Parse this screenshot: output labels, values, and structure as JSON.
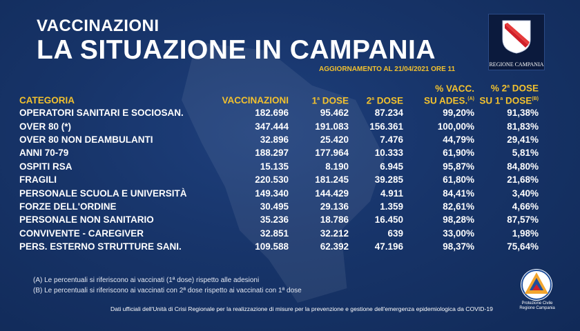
{
  "header": {
    "subtitle": "VACCINAZIONI",
    "title": "LA SITUAZIONE IN CAMPANIA",
    "update": "AGGIORNAMENTO AL 21/04/2021 ORE 11"
  },
  "logo": {
    "label": "REGIONE CAMPANIA"
  },
  "colors": {
    "background": "#173469",
    "accent": "#f2c12e",
    "text": "#ffffff"
  },
  "table": {
    "headers": {
      "category": "CATEGORIA",
      "vaccinations": "VACCINAZIONI",
      "dose1": "1",
      "dose1_sup": "a",
      "dose1_suffix": " DOSE",
      "dose2": "2",
      "dose2_sup": "a",
      "dose2_suffix": " DOSE",
      "pct_vacc_line1": "% VACC.",
      "pct_vacc_line2": "SU ADES.",
      "pct_vacc_note": "(A)",
      "pct_dose2_line1": "% 2",
      "pct_dose2_line1_sup": "a",
      "pct_dose2_line1_suffix": " DOSE",
      "pct_dose2_line2": "SU 1",
      "pct_dose2_line2_sup": "a",
      "pct_dose2_line2_suffix": " DOSE",
      "pct_dose2_note": "(B)"
    },
    "rows": [
      {
        "category": "OPERATORI SANITARI E SOCIOSAN.",
        "vaccinations": "182.696",
        "dose1": "95.462",
        "dose2": "87.234",
        "pct_vacc": "99,20%",
        "pct_dose2": "91,38%"
      },
      {
        "category": "OVER 80 (*)",
        "vaccinations": "347.444",
        "dose1": "191.083",
        "dose2": "156.361",
        "pct_vacc": "100,00%",
        "pct_dose2": "81,83%"
      },
      {
        "category": "OVER 80 NON DEAMBULANTI",
        "vaccinations": "32.896",
        "dose1": "25.420",
        "dose2": "7.476",
        "pct_vacc": "44,79%",
        "pct_dose2": "29,41%"
      },
      {
        "category": "ANNI 70-79",
        "vaccinations": "188.297",
        "dose1": "177.964",
        "dose2": "10.333",
        "pct_vacc": "61,90%",
        "pct_dose2": "5,81%"
      },
      {
        "category": "OSPITI RSA",
        "vaccinations": "15.135",
        "dose1": "8.190",
        "dose2": "6.945",
        "pct_vacc": "95,87%",
        "pct_dose2": "84,80%"
      },
      {
        "category": "FRAGILI",
        "vaccinations": "220.530",
        "dose1": "181.245",
        "dose2": "39.285",
        "pct_vacc": "61,80%",
        "pct_dose2": "21,68%"
      },
      {
        "category": "PERSONALE SCUOLA E UNIVERSITÀ",
        "vaccinations": "149.340",
        "dose1": "144.429",
        "dose2": "4.911",
        "pct_vacc": "84,41%",
        "pct_dose2": "3,40%"
      },
      {
        "category": "FORZE DELL'ORDINE",
        "vaccinations": "30.495",
        "dose1": "29.136",
        "dose2": "1.359",
        "pct_vacc": "82,61%",
        "pct_dose2": "4,66%"
      },
      {
        "category": "PERSONALE NON SANITARIO",
        "vaccinations": "35.236",
        "dose1": "18.786",
        "dose2": "16.450",
        "pct_vacc": "98,28%",
        "pct_dose2": "87,57%"
      },
      {
        "category": "CONVIVENTE - CAREGIVER",
        "vaccinations": "32.851",
        "dose1": "32.212",
        "dose2": "639",
        "pct_vacc": "33,00%",
        "pct_dose2": "1,98%"
      },
      {
        "category": "PERS. ESTERNO STRUTTURE SANI.",
        "vaccinations": "109.588",
        "dose1": "62.392",
        "dose2": "47.196",
        "pct_vacc": "98,37%",
        "pct_dose2": "75,64%"
      }
    ]
  },
  "footnotes": {
    "note_a": "(A) Le percentuali si riferiscono ai vaccinati (1ª dose) rispetto alle adesioni",
    "note_b": "(B) Le percentuali si riferiscono ai vaccinati con 2ª dose rispetto ai vaccinati con 1ª dose",
    "source": "Dati ufficiali dell'Unità di Crisi Regionale per la realizzazione di misure per la prevenzione e gestione dell'emergenza epidemiologica da COVID-19"
  },
  "protezione_civile": {
    "line1": "Protezione Civile",
    "line2": "Regione Campania"
  }
}
